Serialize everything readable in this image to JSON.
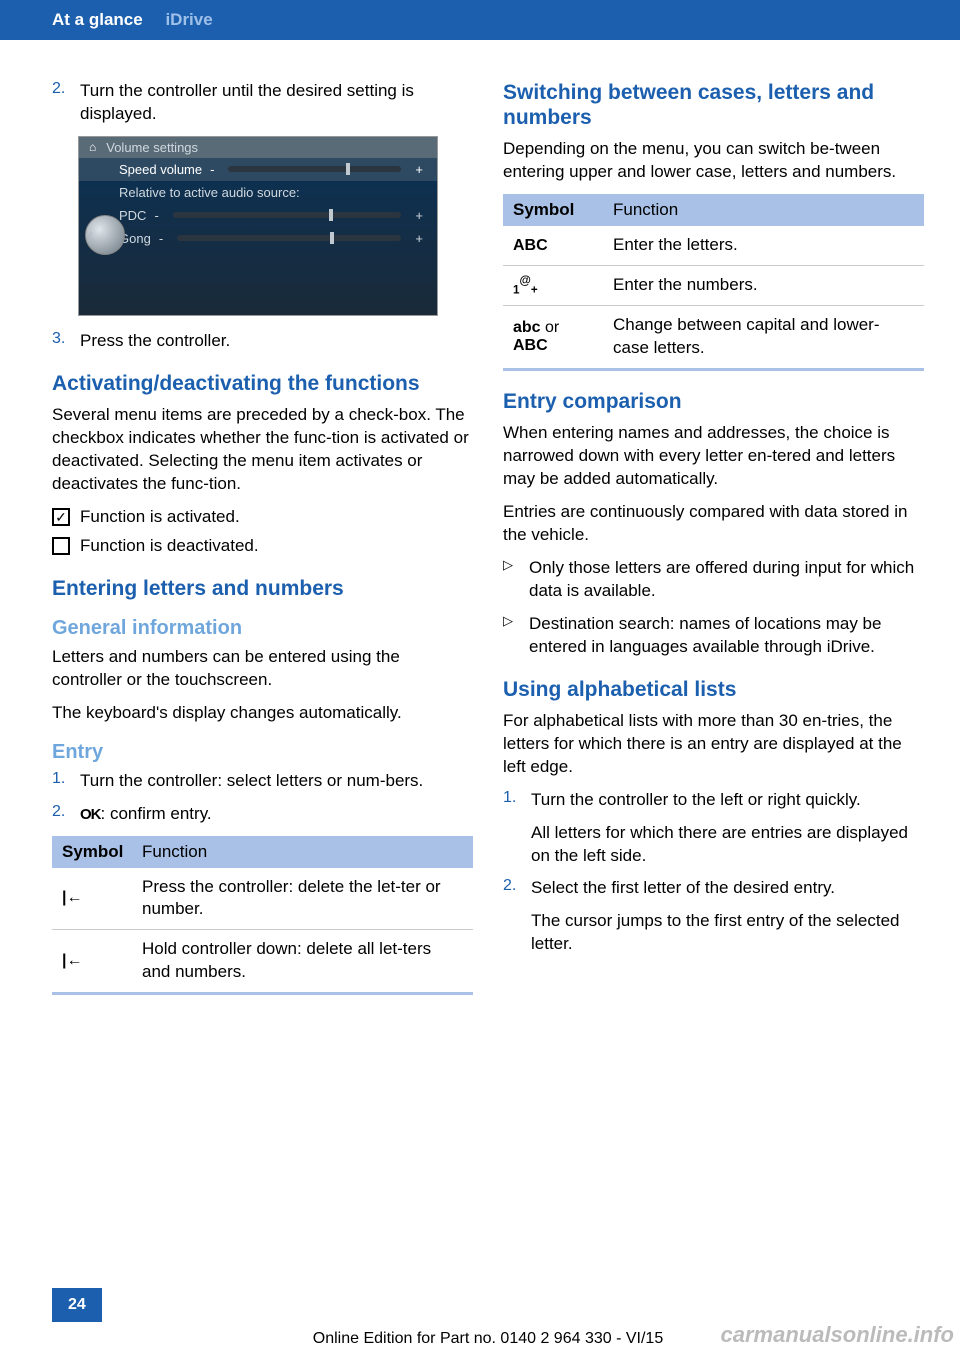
{
  "header": {
    "crumb_main": "At a glance",
    "crumb_sub": "iDrive"
  },
  "left": {
    "step2_num": "2.",
    "step2": "Turn the controller until the desired setting is displayed.",
    "screenshot": {
      "title": "Volume settings",
      "row1": "Speed volume",
      "row2": "Relative to active audio source:",
      "row3": "PDC",
      "row4": "Gong"
    },
    "step3_num": "3.",
    "step3": "Press the controller.",
    "h_activating": "Activating/deactivating the functions",
    "activating_body": "Several menu items are preceded by a check‐box. The checkbox indicates whether the func‐tion is activated or deactivated. Selecting the menu item activates or deactivates the func‐tion.",
    "cb_on": "Function is activated.",
    "cb_off": "Function is deactivated.",
    "h_entering": "Entering letters and numbers",
    "h_general": "General information",
    "general_body1": "Letters and numbers can be entered using the controller or the touchscreen.",
    "general_body2": "The keyboard's display changes automatically.",
    "h_entry": "Entry",
    "entry1_num": "1.",
    "entry1": "Turn the controller: select letters or num‐bers.",
    "entry2_num": "2.",
    "entry2_sym": "OK",
    "entry2": ": confirm entry.",
    "table1": {
      "h_sym": "Symbol",
      "h_fun": "Function",
      "r1_fun": "Press the controller: delete the let‐ter or number.",
      "r2_fun": "Hold controller down: delete all let‐ters and numbers."
    }
  },
  "right": {
    "h_switching": "Switching between cases, letters and numbers",
    "switching_body": "Depending on the menu, you can switch be‐tween entering upper and lower case, letters and numbers.",
    "table2": {
      "h_sym": "Symbol",
      "h_fun": "Function",
      "r1_sym": "ABC",
      "r1_fun": "Enter the letters.",
      "r2_sym": "1@+",
      "r2_fun": "Enter the numbers.",
      "r3_sym1": "abc",
      "r3_or": " or",
      "r3_sym2": "ABC",
      "r3_fun": "Change between capital and lower-case letters."
    },
    "h_entrycomp": "Entry comparison",
    "entrycomp_body1": "When entering names and addresses, the choice is narrowed down with every letter en‐tered and letters may be added automatically.",
    "entrycomp_body2": "Entries are continuously compared with data stored in the vehicle.",
    "bullet1": "Only those letters are offered during input for which data is available.",
    "bullet2": "Destination search: names of locations may be entered in languages available through iDrive.",
    "h_alpha": "Using alphabetical lists",
    "alpha_body": "For alphabetical lists with more than 30 en‐tries, the letters for which there is an entry are displayed at the left edge.",
    "a1_num": "1.",
    "a1": "Turn the controller to the left or right quickly.",
    "a1b": "All letters for which there are entries are displayed on the left side.",
    "a2_num": "2.",
    "a2": "Select the first letter of the desired entry.",
    "a2b": "The cursor jumps to the first entry of the selected letter."
  },
  "footer": {
    "page": "24",
    "line": "Online Edition for Part no. 0140 2 964 330 - VI/15",
    "watermark": "carmanualsonline.info"
  }
}
